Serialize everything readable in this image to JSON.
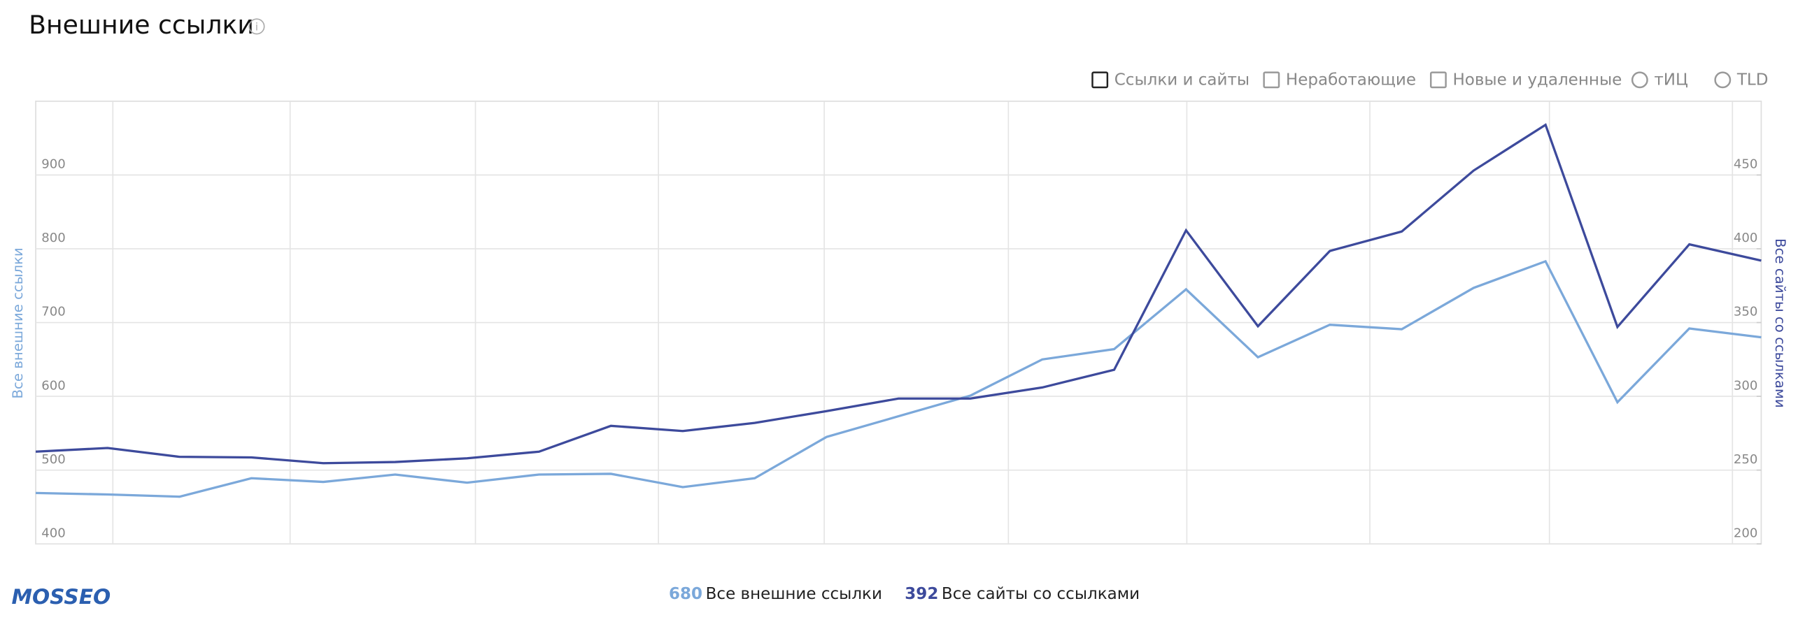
{
  "header": {
    "title": "Внешние ссылки"
  },
  "tabs": [
    "Ссылки и сайты",
    "Неработающие",
    "Новые и удаленные",
    "тИЦ",
    "TLD"
  ],
  "logo": "MOSSEO",
  "chart_data": {
    "type": "line",
    "categories": [
      null,
      null,
      null,
      null,
      null,
      null,
      null,
      null,
      null,
      null,
      null,
      null,
      null,
      null,
      null,
      null,
      null,
      null,
      null,
      null,
      null,
      null,
      null,
      null,
      null
    ],
    "ylabel": "Все внешние ссылки",
    "y2label": "Все сайты со ссылками",
    "ylim": [
      400,
      1000
    ],
    "yticks": [
      400,
      500,
      600,
      700,
      800,
      900
    ],
    "y2lim": [
      200,
      500
    ],
    "y2ticks": [
      200,
      250,
      300,
      350,
      400,
      450
    ],
    "grid": true,
    "series": [
      {
        "name": "Все внешние ссылки",
        "color": "#7ba8da",
        "values": [
          469,
          467,
          464,
          489,
          484,
          494,
          483,
          494,
          495,
          477,
          489,
          545,
          573,
          601,
          650,
          664,
          745,
          653,
          697,
          691,
          747,
          783,
          592,
          692,
          680
        ]
      },
      {
        "name": "Все сайты со ссылками",
        "color": "#3d4a9c",
        "axis": "y2",
        "values": [
          262.5,
          265,
          259,
          258.6,
          254.7,
          255.5,
          258,
          262.5,
          280,
          276.5,
          282,
          290,
          298.5,
          298.5,
          306,
          318,
          412.5,
          347.5,
          398.5,
          411.7,
          453,
          484,
          347,
          403,
          392
        ]
      }
    ]
  }
}
